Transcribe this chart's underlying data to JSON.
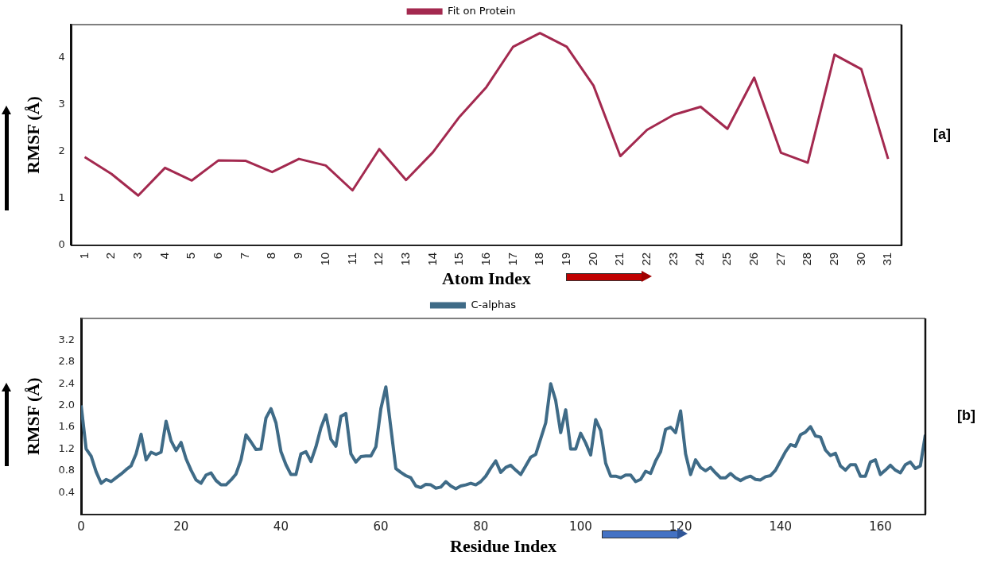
{
  "chart_data": [
    {
      "type": "line",
      "xlabel": "Atom Index",
      "ylabel": "RMSF (Å)",
      "categories": [
        "1",
        "2",
        "3",
        "4",
        "5",
        "6",
        "7",
        "8",
        "9",
        "10",
        "11",
        "12",
        "13",
        "14",
        "15",
        "16",
        "17",
        "18",
        "19",
        "20",
        "21",
        "22",
        "23",
        "24",
        "25",
        "26",
        "27",
        "28",
        "29",
        "30",
        "31"
      ],
      "series": [
        {
          "name": "Fit on Protein",
          "color": "#a3294f",
          "values": [
            1.88,
            1.52,
            1.06,
            1.65,
            1.38,
            1.81,
            1.8,
            1.56,
            1.84,
            1.7,
            1.17,
            2.05,
            1.39,
            1.98,
            2.74,
            3.37,
            4.23,
            4.52,
            4.23,
            3.4,
            1.9,
            2.46,
            2.78,
            2.95,
            2.48,
            3.57,
            1.97,
            1.76,
            4.06,
            3.75,
            1.84
          ]
        }
      ],
      "ylim": [
        0,
        4.7
      ],
      "yticks": [
        0,
        1,
        2,
        3,
        4
      ],
      "grid": false,
      "legend": "top",
      "marker": "none",
      "annotations": [
        "[a]"
      ]
    },
    {
      "type": "line",
      "xlabel": "Residue Index",
      "ylabel": "RMSF (Å)",
      "x": [
        0,
        1,
        2,
        3,
        4,
        5,
        6,
        7,
        8,
        9,
        10,
        11,
        12,
        13,
        14,
        15,
        16,
        17,
        18,
        19,
        20,
        21,
        22,
        23,
        24,
        25,
        26,
        27,
        28,
        29,
        30,
        31,
        32,
        33,
        34,
        35,
        36,
        37,
        38,
        39,
        40,
        41,
        42,
        43,
        44,
        45,
        46,
        47,
        48,
        49,
        50,
        51,
        52,
        53,
        54,
        55,
        56,
        57,
        58,
        59,
        60,
        61,
        62,
        63,
        64,
        65,
        66,
        67,
        68,
        69,
        70,
        71,
        72,
        73,
        74,
        75,
        76,
        77,
        78,
        79,
        80,
        81,
        82,
        83,
        84,
        85,
        86,
        87,
        88,
        89,
        90,
        91,
        92,
        93,
        94,
        95,
        96,
        97,
        98,
        99,
        100,
        101,
        102,
        103,
        104,
        105,
        106,
        107,
        108,
        109,
        110,
        111,
        112,
        113,
        114,
        115,
        116,
        117,
        118,
        119,
        120,
        121,
        122,
        123,
        124,
        125,
        126,
        127,
        128,
        129,
        130,
        131,
        132,
        133,
        134,
        135,
        136,
        137,
        138,
        139,
        140,
        141,
        142,
        143,
        144,
        145,
        146,
        147,
        148,
        149,
        150,
        151,
        152,
        153,
        154,
        155,
        156,
        157,
        158,
        159,
        160,
        161,
        162,
        163,
        164,
        165,
        166,
        167,
        168,
        169
      ],
      "series": [
        {
          "name": "C-alphas",
          "color": "#3f6b87",
          "values": [
            2.0,
            1.2,
            1.07,
            0.78,
            0.57,
            0.64,
            0.6,
            0.67,
            0.74,
            0.82,
            0.89,
            1.11,
            1.47,
            1.0,
            1.14,
            1.1,
            1.14,
            1.71,
            1.35,
            1.17,
            1.32,
            1.02,
            0.81,
            0.63,
            0.57,
            0.72,
            0.76,
            0.62,
            0.54,
            0.54,
            0.63,
            0.74,
            1.0,
            1.46,
            1.33,
            1.19,
            1.2,
            1.77,
            1.94,
            1.68,
            1.15,
            0.91,
            0.73,
            0.73,
            1.11,
            1.15,
            0.97,
            1.24,
            1.59,
            1.83,
            1.38,
            1.25,
            1.8,
            1.85,
            1.11,
            0.96,
            1.06,
            1.07,
            1.07,
            1.24,
            1.94,
            2.34,
            1.59,
            0.84,
            0.77,
            0.71,
            0.67,
            0.52,
            0.49,
            0.55,
            0.54,
            0.48,
            0.5,
            0.6,
            0.52,
            0.47,
            0.52,
            0.54,
            0.57,
            0.54,
            0.6,
            0.7,
            0.85,
            0.98,
            0.77,
            0.86,
            0.9,
            0.81,
            0.73,
            0.89,
            1.05,
            1.1,
            1.39,
            1.68,
            2.4,
            2.09,
            1.5,
            1.92,
            1.2,
            1.2,
            1.49,
            1.31,
            1.09,
            1.74,
            1.54,
            0.94,
            0.7,
            0.7,
            0.67,
            0.72,
            0.72,
            0.6,
            0.64,
            0.79,
            0.75,
            0.98,
            1.15,
            1.56,
            1.6,
            1.5,
            1.9,
            1.11,
            0.73,
            1.0,
            0.86,
            0.8,
            0.86,
            0.76,
            0.67,
            0.67,
            0.75,
            0.67,
            0.62,
            0.67,
            0.7,
            0.64,
            0.63,
            0.69,
            0.71,
            0.81,
            0.98,
            1.15,
            1.28,
            1.25,
            1.46,
            1.51,
            1.61,
            1.44,
            1.42,
            1.18,
            1.08,
            1.12,
            0.89,
            0.81,
            0.91,
            0.91,
            0.7,
            0.7,
            0.96,
            1.0,
            0.73,
            0.81,
            0.9,
            0.81,
            0.76,
            0.91,
            0.96,
            0.84,
            0.89,
            1.46
          ]
        }
      ],
      "xlim": [
        0,
        169
      ],
      "xticks": [
        0,
        20,
        40,
        60,
        80,
        100,
        120,
        140,
        160
      ],
      "ylim": [
        0,
        3.6
      ],
      "yticks": [
        0.4,
        0.8,
        1.2,
        1.6,
        {
          "value": 2,
          "label": "2.0"
        },
        2.4,
        2.8,
        3.2
      ],
      "grid": false,
      "legend": "top",
      "marker": "none",
      "annotations": [
        "[b]"
      ]
    }
  ]
}
